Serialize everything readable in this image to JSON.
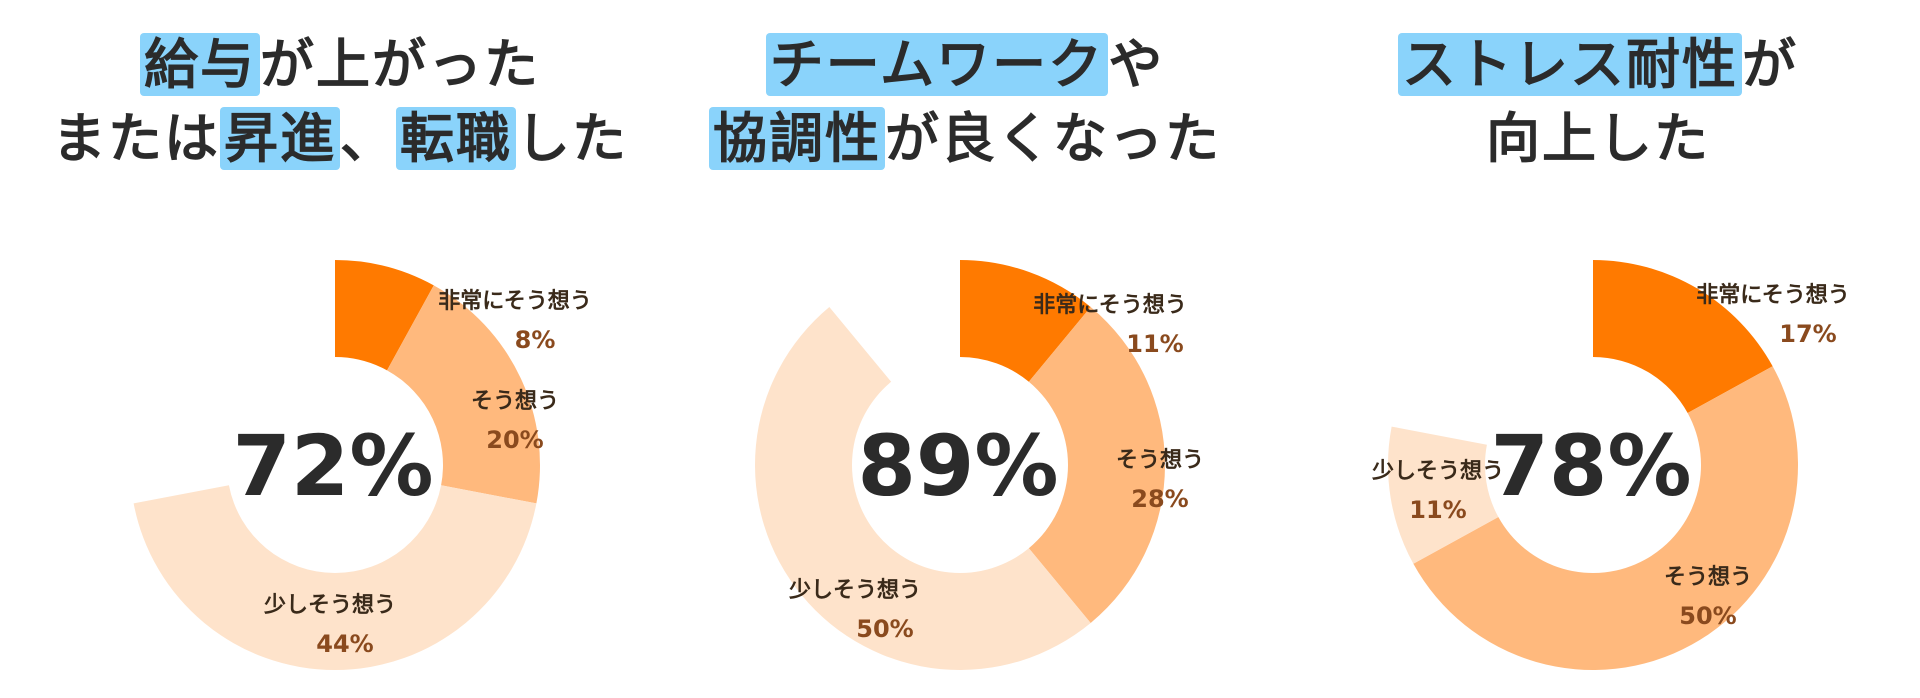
{
  "colors": {
    "very_strong": "#ff7a00",
    "agree": "#ffb97d",
    "slightly": "#fee3cb",
    "highlight": "#8ad3fb"
  },
  "panels": [
    {
      "title_lines": [
        [
          {
            "text": "給与",
            "hl": true
          },
          {
            "text": "が上がった",
            "hl": false
          }
        ],
        [
          {
            "text": "または",
            "hl": false
          },
          {
            "text": "昇進",
            "hl": true
          },
          {
            "text": "、",
            "hl": false
          },
          {
            "text": "転職",
            "hl": true
          },
          {
            "text": "した",
            "hl": false
          }
        ]
      ],
      "center_text": "72%"
    },
    {
      "title_lines": [
        [
          {
            "text": "チームワーク",
            "hl": true
          },
          {
            "text": "や",
            "hl": false
          }
        ],
        [
          {
            "text": "協調性",
            "hl": true
          },
          {
            "text": "が良くなった",
            "hl": false
          }
        ]
      ],
      "center_text": "89%"
    },
    {
      "title_lines": [
        [
          {
            "text": "ストレス耐性",
            "hl": true
          },
          {
            "text": "が",
            "hl": false
          }
        ],
        [
          {
            "text": "向上した",
            "hl": false
          }
        ]
      ],
      "center_text": "78%"
    }
  ],
  "chart_data": [
    {
      "type": "pie",
      "donut": true,
      "title": "給与が上がった または昇進、転職した",
      "center_label": "72%",
      "slices": [
        {
          "label": "非常にそう想う",
          "value": 8,
          "value_text": "8%",
          "color": "#ff7a00"
        },
        {
          "label": "そう想う",
          "value": 20,
          "value_text": "20%",
          "color": "#ffb97d"
        },
        {
          "label": "少しそう想う",
          "value": 44,
          "value_text": "44%",
          "color": "#fee3cb"
        }
      ]
    },
    {
      "type": "pie",
      "donut": true,
      "title": "チームワークや協調性が良くなった",
      "center_label": "89%",
      "slices": [
        {
          "label": "非常にそう想う",
          "value": 11,
          "value_text": "11%",
          "color": "#ff7a00"
        },
        {
          "label": "そう想う",
          "value": 28,
          "value_text": "28%",
          "color": "#ffb97d"
        },
        {
          "label": "少しそう想う",
          "value": 50,
          "value_text": "50%",
          "color": "#fee3cb"
        }
      ]
    },
    {
      "type": "pie",
      "donut": true,
      "title": "ストレス耐性が向上した",
      "center_label": "78%",
      "slices": [
        {
          "label": "非常にそう想う",
          "value": 17,
          "value_text": "17%",
          "color": "#ff7a00"
        },
        {
          "label": "そう想う",
          "value": 50,
          "value_text": "50%",
          "color": "#ffb97d"
        },
        {
          "label": "少しそう想う",
          "value": 11,
          "value_text": "11%",
          "color": "#fee3cb"
        }
      ]
    }
  ]
}
